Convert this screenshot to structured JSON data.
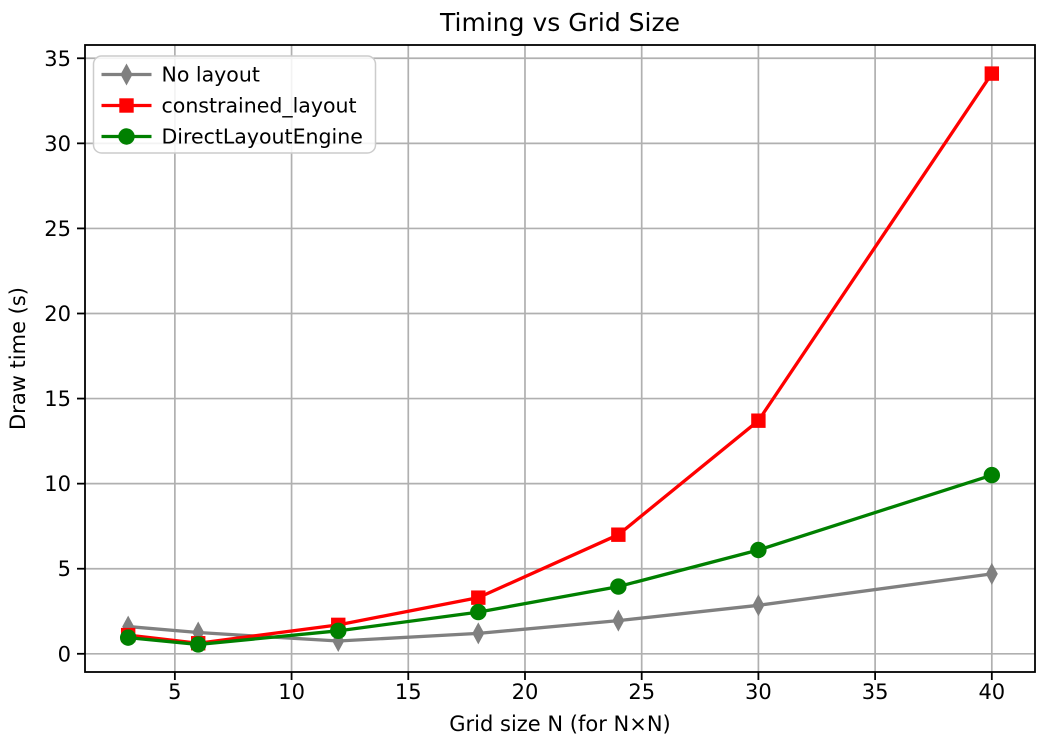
{
  "chart_data": {
    "type": "line",
    "title": "Timing vs Grid Size",
    "xlabel": "Grid size N (for N×N)",
    "ylabel": "Draw time (s)",
    "x": [
      3,
      6,
      12,
      18,
      24,
      30,
      40
    ],
    "series": [
      {
        "name": "No layout",
        "color": "#808080",
        "marker": "thin-diamond",
        "values": [
          1.6,
          1.25,
          0.75,
          1.2,
          1.95,
          2.85,
          4.7
        ]
      },
      {
        "name": "constrained_layout",
        "color": "#ff0000",
        "marker": "square",
        "values": [
          1.1,
          0.62,
          1.7,
          3.3,
          7.0,
          13.7,
          34.1
        ]
      },
      {
        "name": "DirectLayoutEngine",
        "color": "#008000",
        "marker": "circle",
        "values": [
          0.95,
          0.55,
          1.35,
          2.45,
          3.95,
          6.1,
          10.5
        ]
      }
    ],
    "xticks": [
      5,
      10,
      15,
      20,
      25,
      30,
      35,
      40
    ],
    "yticks": [
      0,
      5,
      10,
      15,
      20,
      25,
      30,
      35
    ],
    "xlim": [
      1.15,
      41.85
    ],
    "ylim": [
      -1.07,
      35.78
    ],
    "grid": true,
    "legend_position": "upper-left",
    "colors": {
      "grid": "#b0b0b0",
      "spine": "#000000",
      "text": "#000000",
      "background": "#ffffff",
      "legend_border": "#cccccc",
      "legend_background": "#ffffff"
    }
  }
}
